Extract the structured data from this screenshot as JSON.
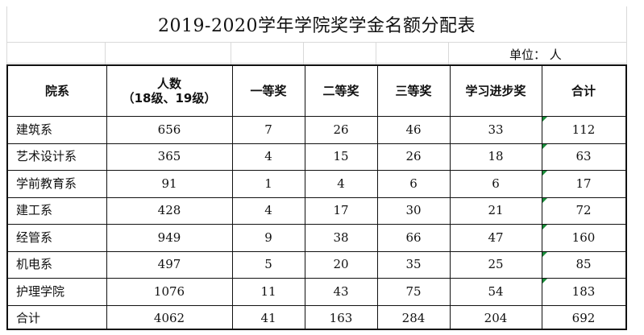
{
  "title": "2019-2020学年学院奖学金名额分配表",
  "unit": "单位：  人",
  "table": {
    "headers": [
      "院系",
      "人数",
      "（18级、19级）",
      "一等奖",
      "二等奖",
      "三等奖",
      "学习进步奖",
      "合计"
    ],
    "rows": [
      [
        "建筑系",
        "656",
        "7",
        "26",
        "46",
        "33",
        "112"
      ],
      [
        "艺术设计系",
        "365",
        "4",
        "15",
        "26",
        "18",
        "63"
      ],
      [
        "学前教育系",
        "91",
        "1",
        "4",
        "6",
        "6",
        "17"
      ],
      [
        "建工系",
        "428",
        "4",
        "17",
        "30",
        "21",
        "72"
      ],
      [
        "经管系",
        "949",
        "9",
        "38",
        "66",
        "47",
        "160"
      ],
      [
        "机电系",
        "497",
        "5",
        "20",
        "35",
        "25",
        "85"
      ],
      [
        "护理学院",
        "1076",
        "11",
        "43",
        "75",
        "54",
        "183"
      ],
      [
        "合计",
        "4062",
        "41",
        "163",
        "284",
        "204",
        "692"
      ]
    ]
  },
  "colors": {
    "border": "#111111",
    "gridline": "#d9d9d9",
    "cell_marker": "#1a8c3a"
  }
}
